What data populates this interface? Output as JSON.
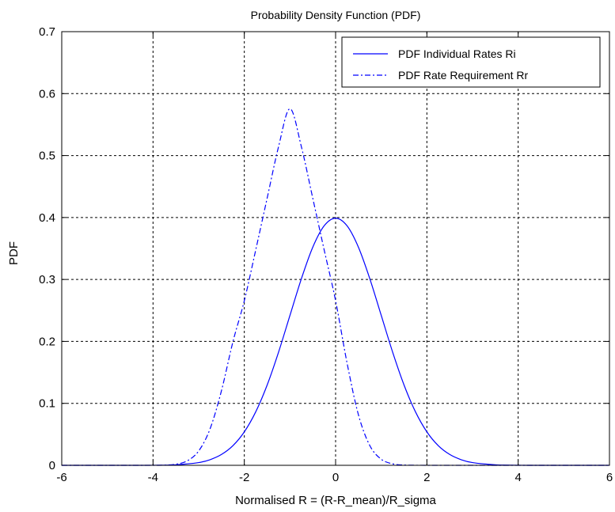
{
  "chart_data": {
    "type": "line",
    "title": "Probability Density Function (PDF)",
    "xlabel": "Normalised R = (R-R_mean)/R_sigma",
    "ylabel": "PDF",
    "xlim": [
      -6,
      6
    ],
    "ylim": [
      0,
      0.7
    ],
    "xticks": [
      -6,
      -4,
      -2,
      0,
      2,
      4,
      6
    ],
    "yticks": [
      0,
      0.1,
      0.2,
      0.3,
      0.4,
      0.5,
      0.6,
      0.7
    ],
    "xtick_labels": [
      "-6",
      "-4",
      "-2",
      "0",
      "2",
      "4",
      "6"
    ],
    "ytick_labels": [
      "0",
      "0.1",
      "0.2",
      "0.3",
      "0.4",
      "0.5",
      "0.6",
      "0.7"
    ],
    "grid": true,
    "legend_position": "top-right",
    "series": [
      {
        "name": "PDF Individual Rates Ri",
        "line_style": "solid",
        "color": "#0000ff",
        "x": [
          -6,
          -5.5,
          -5,
          -4.5,
          -4,
          -3.5,
          -3,
          -2.75,
          -2.5,
          -2.25,
          -2,
          -1.75,
          -1.5,
          -1.25,
          -1,
          -0.75,
          -0.5,
          -0.25,
          0,
          0.25,
          0.5,
          0.75,
          1,
          1.25,
          1.5,
          1.75,
          2,
          2.25,
          2.5,
          2.75,
          3,
          3.5,
          4,
          4.5,
          5,
          5.5,
          6
        ],
        "y": [
          0.0,
          0.0,
          0.0,
          0.0,
          0.0001,
          0.0009,
          0.0044,
          0.0091,
          0.0175,
          0.0317,
          0.054,
          0.0863,
          0.1295,
          0.1826,
          0.242,
          0.3011,
          0.3521,
          0.3867,
          0.3989,
          0.3867,
          0.3521,
          0.3011,
          0.242,
          0.1826,
          0.1295,
          0.0863,
          0.054,
          0.0317,
          0.0175,
          0.0091,
          0.0044,
          0.0009,
          0.0001,
          0.0,
          0.0,
          0.0,
          0.0
        ]
      },
      {
        "name": "PDF Rate Requirement Rr",
        "line_style": "dash-dot",
        "color": "#0000ff",
        "x": [
          -6,
          -5,
          -4,
          -3.75,
          -3.5,
          -3.25,
          -3,
          -2.75,
          -2.5,
          -2.25,
          -2,
          -1.75,
          -1.5,
          -1.25,
          -1,
          -0.75,
          -0.5,
          -0.25,
          0,
          0.25,
          0.5,
          0.75,
          1,
          1.25,
          1.5,
          2,
          3,
          4,
          5,
          6
        ],
        "y": [
          0.0,
          0.0,
          0.0,
          0.0003,
          0.0018,
          0.0072,
          0.0231,
          0.0589,
          0.1206,
          0.1993,
          0.2657,
          0.3476,
          0.4311,
          0.5143,
          0.5756,
          0.5143,
          0.4311,
          0.3476,
          0.2657,
          0.1655,
          0.0816,
          0.0318,
          0.0098,
          0.0024,
          0.0005,
          0.0,
          0.0,
          0.0,
          0.0,
          0.0
        ]
      }
    ]
  }
}
